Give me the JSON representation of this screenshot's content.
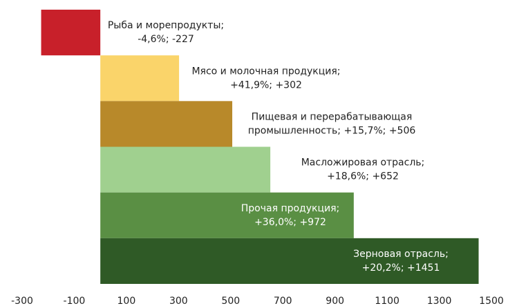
{
  "chart_data": {
    "type": "barh",
    "categories": [
      null,
      null,
      null,
      null,
      null,
      null
    ],
    "values": [
      -227,
      302,
      506,
      652,
      972,
      1451
    ],
    "value_labels": [
      [
        "Рыба и морепродукты;",
        "-4,6%; -227"
      ],
      [
        "Мясо и молочная продукция;",
        "+41,9%; +302"
      ],
      [
        "Пищевая и перерабатывающая",
        "промышленность; +15,7%; +506"
      ],
      [
        "Масложировая отрасль;",
        "+18,6%; +652"
      ],
      [
        "Прочая продукция;",
        "+36,0%; +972"
      ],
      [
        "Зерновая отрасль;",
        "+20,2%; +1451"
      ]
    ],
    "colors": [
      "#c8202a",
      "#fad46a",
      "#b8892a",
      "#a0d08f",
      "#5a8f44",
      "#2f5a26"
    ],
    "label_colors": [
      "#222222",
      "#222222",
      "#222222",
      "#222222",
      "#ffffff",
      "#ffffff"
    ],
    "xlim": [
      -300,
      1500
    ],
    "xticks": [
      -300,
      -100,
      100,
      300,
      500,
      700,
      900,
      1100,
      1300,
      1500
    ],
    "grid": false
  }
}
